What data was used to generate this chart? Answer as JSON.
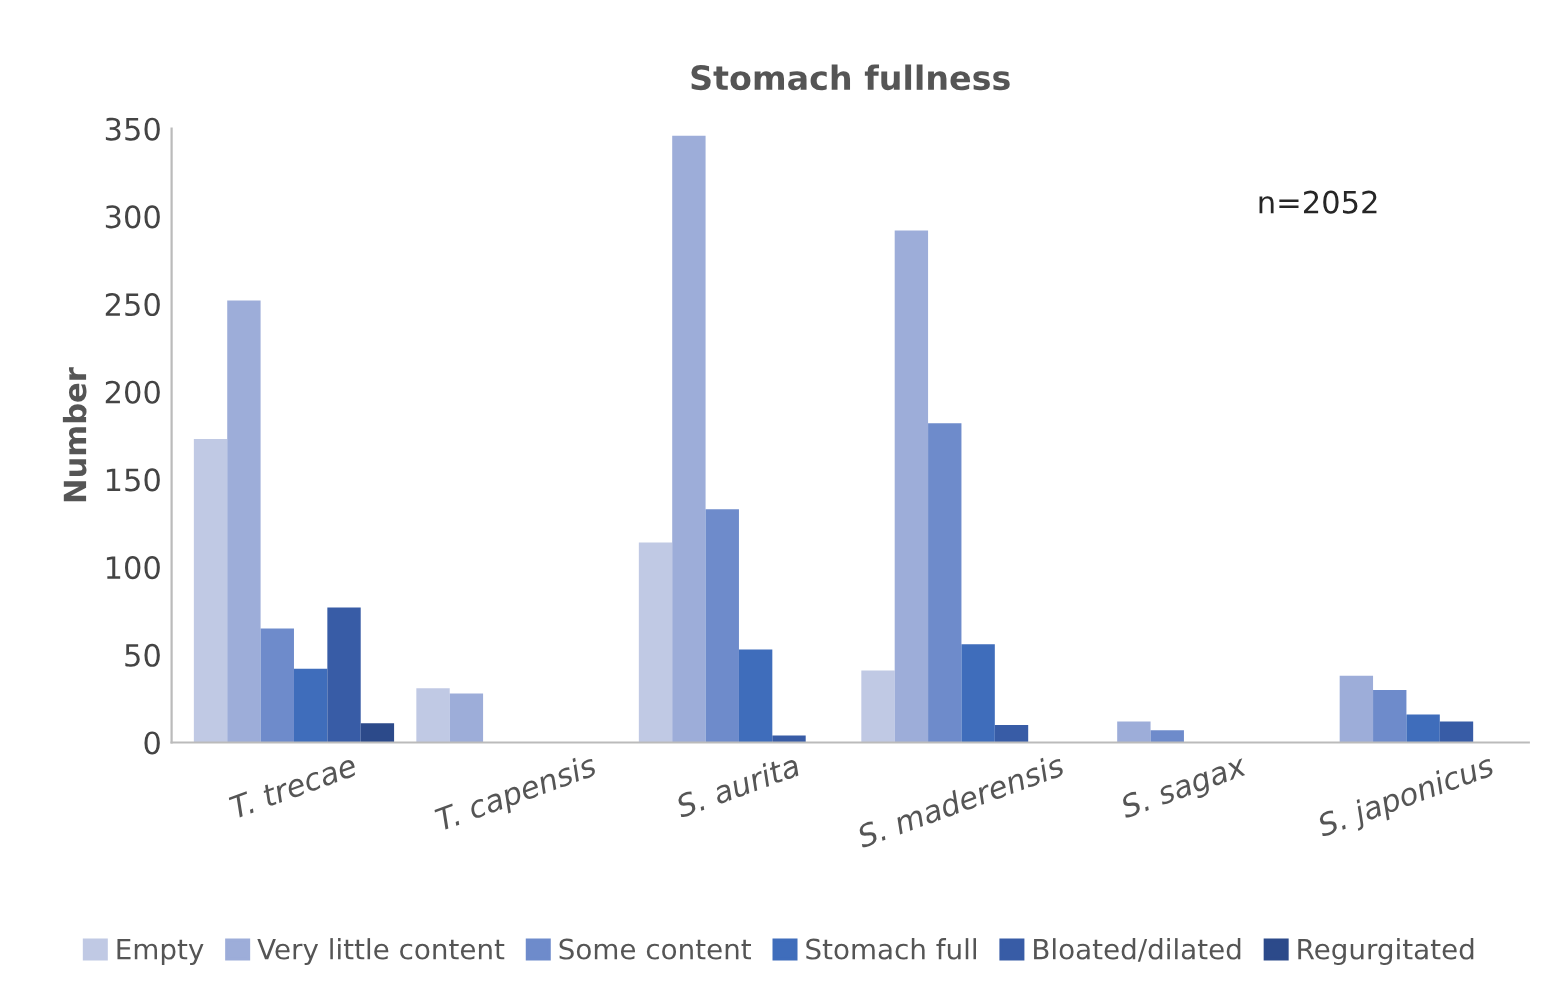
{
  "chart_data": {
    "type": "bar",
    "title": "Stomach fullness",
    "ylabel": "Number",
    "categories": [
      "T. trecae",
      "T. capensis",
      "S. aurita",
      "S. maderensis",
      "S. sagax",
      "S. japonicus"
    ],
    "series": [
      {
        "name": "Empty",
        "color": "#c0c9e4",
        "values": [
          173,
          31,
          114,
          41,
          0,
          0
        ]
      },
      {
        "name": "Very little content",
        "color": "#9dadd9",
        "values": [
          252,
          28,
          346,
          292,
          12,
          38
        ]
      },
      {
        "name": "Some content",
        "color": "#6e8bcb",
        "values": [
          65,
          0,
          133,
          182,
          7,
          30
        ]
      },
      {
        "name": "Stomach full",
        "color": "#3f6dbb",
        "values": [
          42,
          0,
          53,
          56,
          0,
          16
        ]
      },
      {
        "name": "Bloated/dilated",
        "color": "#385ca6",
        "values": [
          77,
          0,
          4,
          10,
          0,
          12
        ]
      },
      {
        "name": "Regurgitated",
        "color": "#2c4a8a",
        "values": [
          11,
          0,
          0,
          0,
          0,
          0
        ]
      }
    ],
    "ylim": [
      0,
      350
    ],
    "yticks": [
      0,
      50,
      100,
      150,
      200,
      250,
      300,
      350
    ],
    "annotations": [
      "n=2052"
    ],
    "grid": false,
    "legend": "bottom"
  }
}
